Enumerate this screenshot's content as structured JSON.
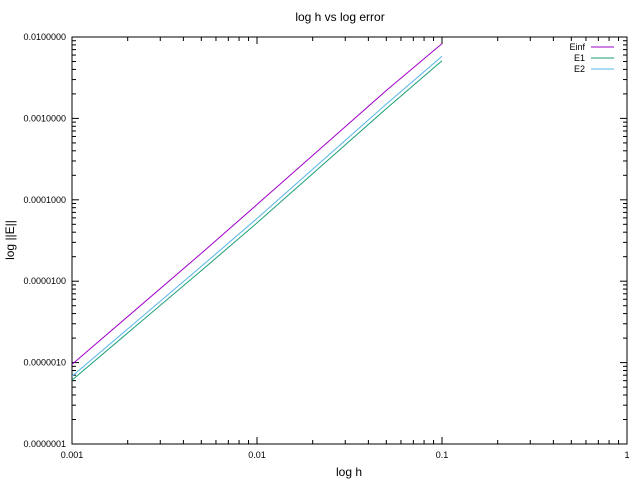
{
  "chart_data": {
    "type": "line",
    "title": "log h vs log error",
    "xlabel": "log h",
    "ylabel": "log ||E||",
    "xscale": "log",
    "yscale": "log",
    "xlim": [
      0.001,
      1
    ],
    "ylim": [
      1e-07,
      0.01
    ],
    "x_ticks": [
      "0.001",
      "0.01",
      "0.1",
      "1"
    ],
    "y_ticks": [
      "0.0000001",
      "0.0000010",
      "0.0000100",
      "0.0001000",
      "0.0010000",
      "0.0100000"
    ],
    "grid": false,
    "legend_position": "top-right",
    "series": [
      {
        "name": "Einf",
        "color": "#a100c8",
        "x": [
          0.001,
          0.005,
          0.01,
          0.05,
          0.1
        ],
        "y": [
          9.5e-07,
          2.2e-05,
          8.75e-05,
          0.0022,
          0.0083
        ]
      },
      {
        "name": "E1",
        "color": "#1b9e77",
        "x": [
          0.001,
          0.005,
          0.01,
          0.05,
          0.1
        ],
        "y": [
          6.1e-07,
          1.35e-05,
          5.2e-05,
          0.00132,
          0.0051
        ]
      },
      {
        "name": "E2",
        "color": "#56b4e9",
        "x": [
          0.001,
          0.005,
          0.01,
          0.05,
          0.1
        ],
        "y": [
          6.8e-07,
          1.52e-05,
          5.9e-05,
          0.0015,
          0.0058
        ]
      }
    ]
  }
}
